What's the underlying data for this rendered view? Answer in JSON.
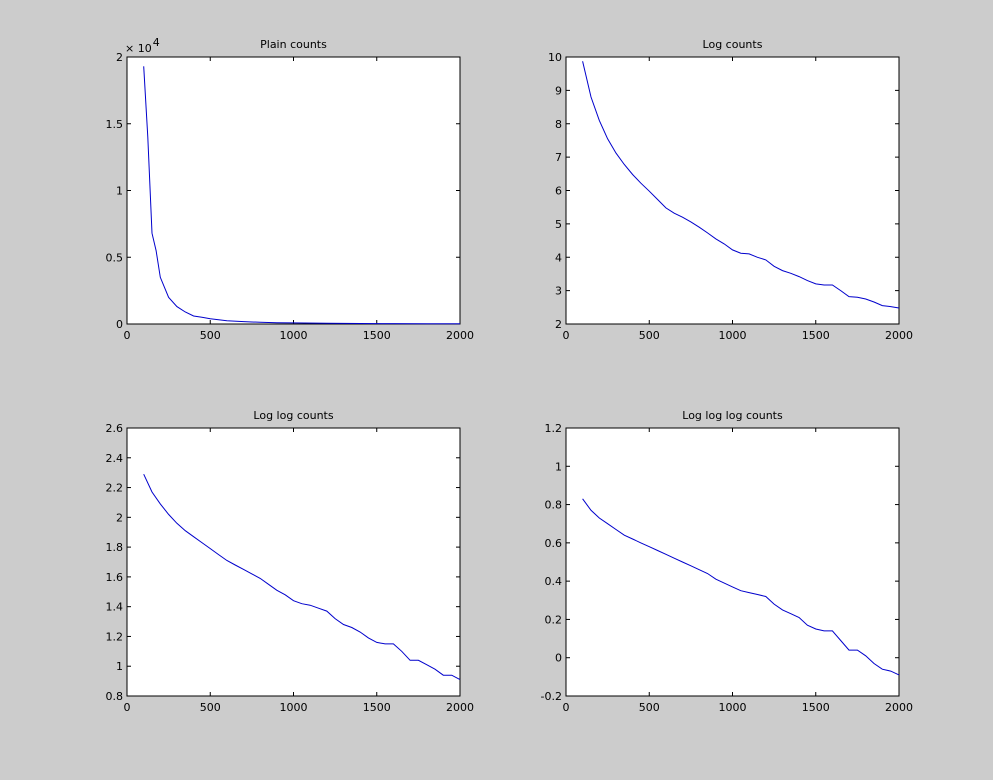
{
  "chart_data": [
    {
      "type": "line",
      "title": "Plain counts",
      "xlabel": "",
      "ylabel": "",
      "xlim": [
        0,
        2000
      ],
      "ylim": [
        0,
        2
      ],
      "y_multiplier": "× 10",
      "y_multiplier_exponent": "4",
      "x_ticks": [
        "0",
        "500",
        "1000",
        "1500",
        "2000"
      ],
      "y_ticks": [
        "0",
        "0.5",
        "1",
        "1.5",
        "2"
      ],
      "grid": false,
      "color": "#0000cc",
      "series": [
        {
          "x": [
            100,
            125,
            150,
            175,
            200,
            250,
            300,
            350,
            400,
            450,
            500,
            600,
            700,
            800,
            900,
            1000,
            1200,
            1400,
            1600,
            1800,
            2000
          ],
          "y": [
            1.93,
            1.4,
            0.68,
            0.55,
            0.35,
            0.2,
            0.13,
            0.09,
            0.06,
            0.05,
            0.04,
            0.025,
            0.018,
            0.013,
            0.01,
            0.008,
            0.006,
            0.004,
            0.003,
            0.002,
            0.002
          ]
        }
      ]
    },
    {
      "type": "line",
      "title": "Log counts",
      "xlabel": "",
      "ylabel": "",
      "xlim": [
        0,
        2000
      ],
      "ylim": [
        2,
        10
      ],
      "x_ticks": [
        "0",
        "500",
        "1000",
        "1500",
        "2000"
      ],
      "y_ticks": [
        "2",
        "3",
        "4",
        "5",
        "6",
        "7",
        "8",
        "9",
        "10"
      ],
      "grid": false,
      "color": "#0000cc",
      "series": [
        {
          "x": [
            100,
            150,
            200,
            250,
            300,
            350,
            400,
            450,
            500,
            550,
            600,
            650,
            700,
            750,
            800,
            850,
            900,
            950,
            1000,
            1050,
            1100,
            1150,
            1200,
            1250,
            1300,
            1350,
            1400,
            1450,
            1500,
            1550,
            1600,
            1650,
            1700,
            1750,
            1800,
            1850,
            1900,
            1950,
            2000
          ],
          "y": [
            9.87,
            8.8,
            8.1,
            7.55,
            7.12,
            6.78,
            6.48,
            6.22,
            5.98,
            5.73,
            5.48,
            5.32,
            5.2,
            5.06,
            4.9,
            4.73,
            4.55,
            4.4,
            4.22,
            4.12,
            4.1,
            4.0,
            3.92,
            3.73,
            3.6,
            3.52,
            3.42,
            3.3,
            3.2,
            3.17,
            3.17,
            3.0,
            2.82,
            2.8,
            2.75,
            2.66,
            2.55,
            2.52,
            2.48
          ]
        }
      ]
    },
    {
      "type": "line",
      "title": "Log log counts",
      "xlabel": "",
      "ylabel": "",
      "xlim": [
        0,
        2000
      ],
      "ylim": [
        0.8,
        2.6
      ],
      "x_ticks": [
        "0",
        "500",
        "1000",
        "1500",
        "2000"
      ],
      "y_ticks": [
        "0.8",
        "1",
        "1.2",
        "1.4",
        "1.6",
        "1.8",
        "2",
        "2.2",
        "2.4",
        "2.6"
      ],
      "grid": false,
      "color": "#0000cc",
      "series": [
        {
          "x": [
            100,
            150,
            200,
            250,
            300,
            350,
            400,
            450,
            500,
            550,
            600,
            650,
            700,
            750,
            800,
            850,
            900,
            950,
            1000,
            1050,
            1100,
            1150,
            1200,
            1250,
            1300,
            1350,
            1400,
            1450,
            1500,
            1550,
            1600,
            1650,
            1700,
            1750,
            1800,
            1850,
            1900,
            1950,
            2000
          ],
          "y": [
            2.29,
            2.17,
            2.09,
            2.02,
            1.96,
            1.91,
            1.87,
            1.83,
            1.79,
            1.75,
            1.71,
            1.68,
            1.65,
            1.62,
            1.59,
            1.55,
            1.51,
            1.48,
            1.44,
            1.42,
            1.41,
            1.39,
            1.37,
            1.32,
            1.28,
            1.26,
            1.23,
            1.19,
            1.16,
            1.15,
            1.15,
            1.1,
            1.04,
            1.04,
            1.01,
            0.98,
            0.94,
            0.94,
            0.91
          ]
        }
      ]
    },
    {
      "type": "line",
      "title": "Log log log counts",
      "xlabel": "",
      "ylabel": "",
      "xlim": [
        0,
        2000
      ],
      "ylim": [
        -0.2,
        1.2
      ],
      "x_ticks": [
        "0",
        "500",
        "1000",
        "1500",
        "2000"
      ],
      "y_ticks": [
        "-0.2",
        "0",
        "0.2",
        "0.4",
        "0.6",
        "0.8",
        "1",
        "1.2"
      ],
      "grid": false,
      "color": "#0000cc",
      "series": [
        {
          "x": [
            100,
            150,
            200,
            250,
            300,
            350,
            400,
            450,
            500,
            550,
            600,
            650,
            700,
            750,
            800,
            850,
            900,
            950,
            1000,
            1050,
            1100,
            1150,
            1200,
            1250,
            1300,
            1350,
            1400,
            1450,
            1500,
            1550,
            1600,
            1650,
            1700,
            1750,
            1800,
            1850,
            1900,
            1950,
            2000
          ],
          "y": [
            0.83,
            0.77,
            0.73,
            0.7,
            0.67,
            0.64,
            0.62,
            0.6,
            0.58,
            0.56,
            0.54,
            0.52,
            0.5,
            0.48,
            0.46,
            0.44,
            0.41,
            0.39,
            0.37,
            0.35,
            0.34,
            0.33,
            0.32,
            0.28,
            0.25,
            0.23,
            0.21,
            0.17,
            0.15,
            0.14,
            0.14,
            0.09,
            0.04,
            0.04,
            0.01,
            -0.03,
            -0.06,
            -0.07,
            -0.09
          ]
        }
      ]
    }
  ]
}
